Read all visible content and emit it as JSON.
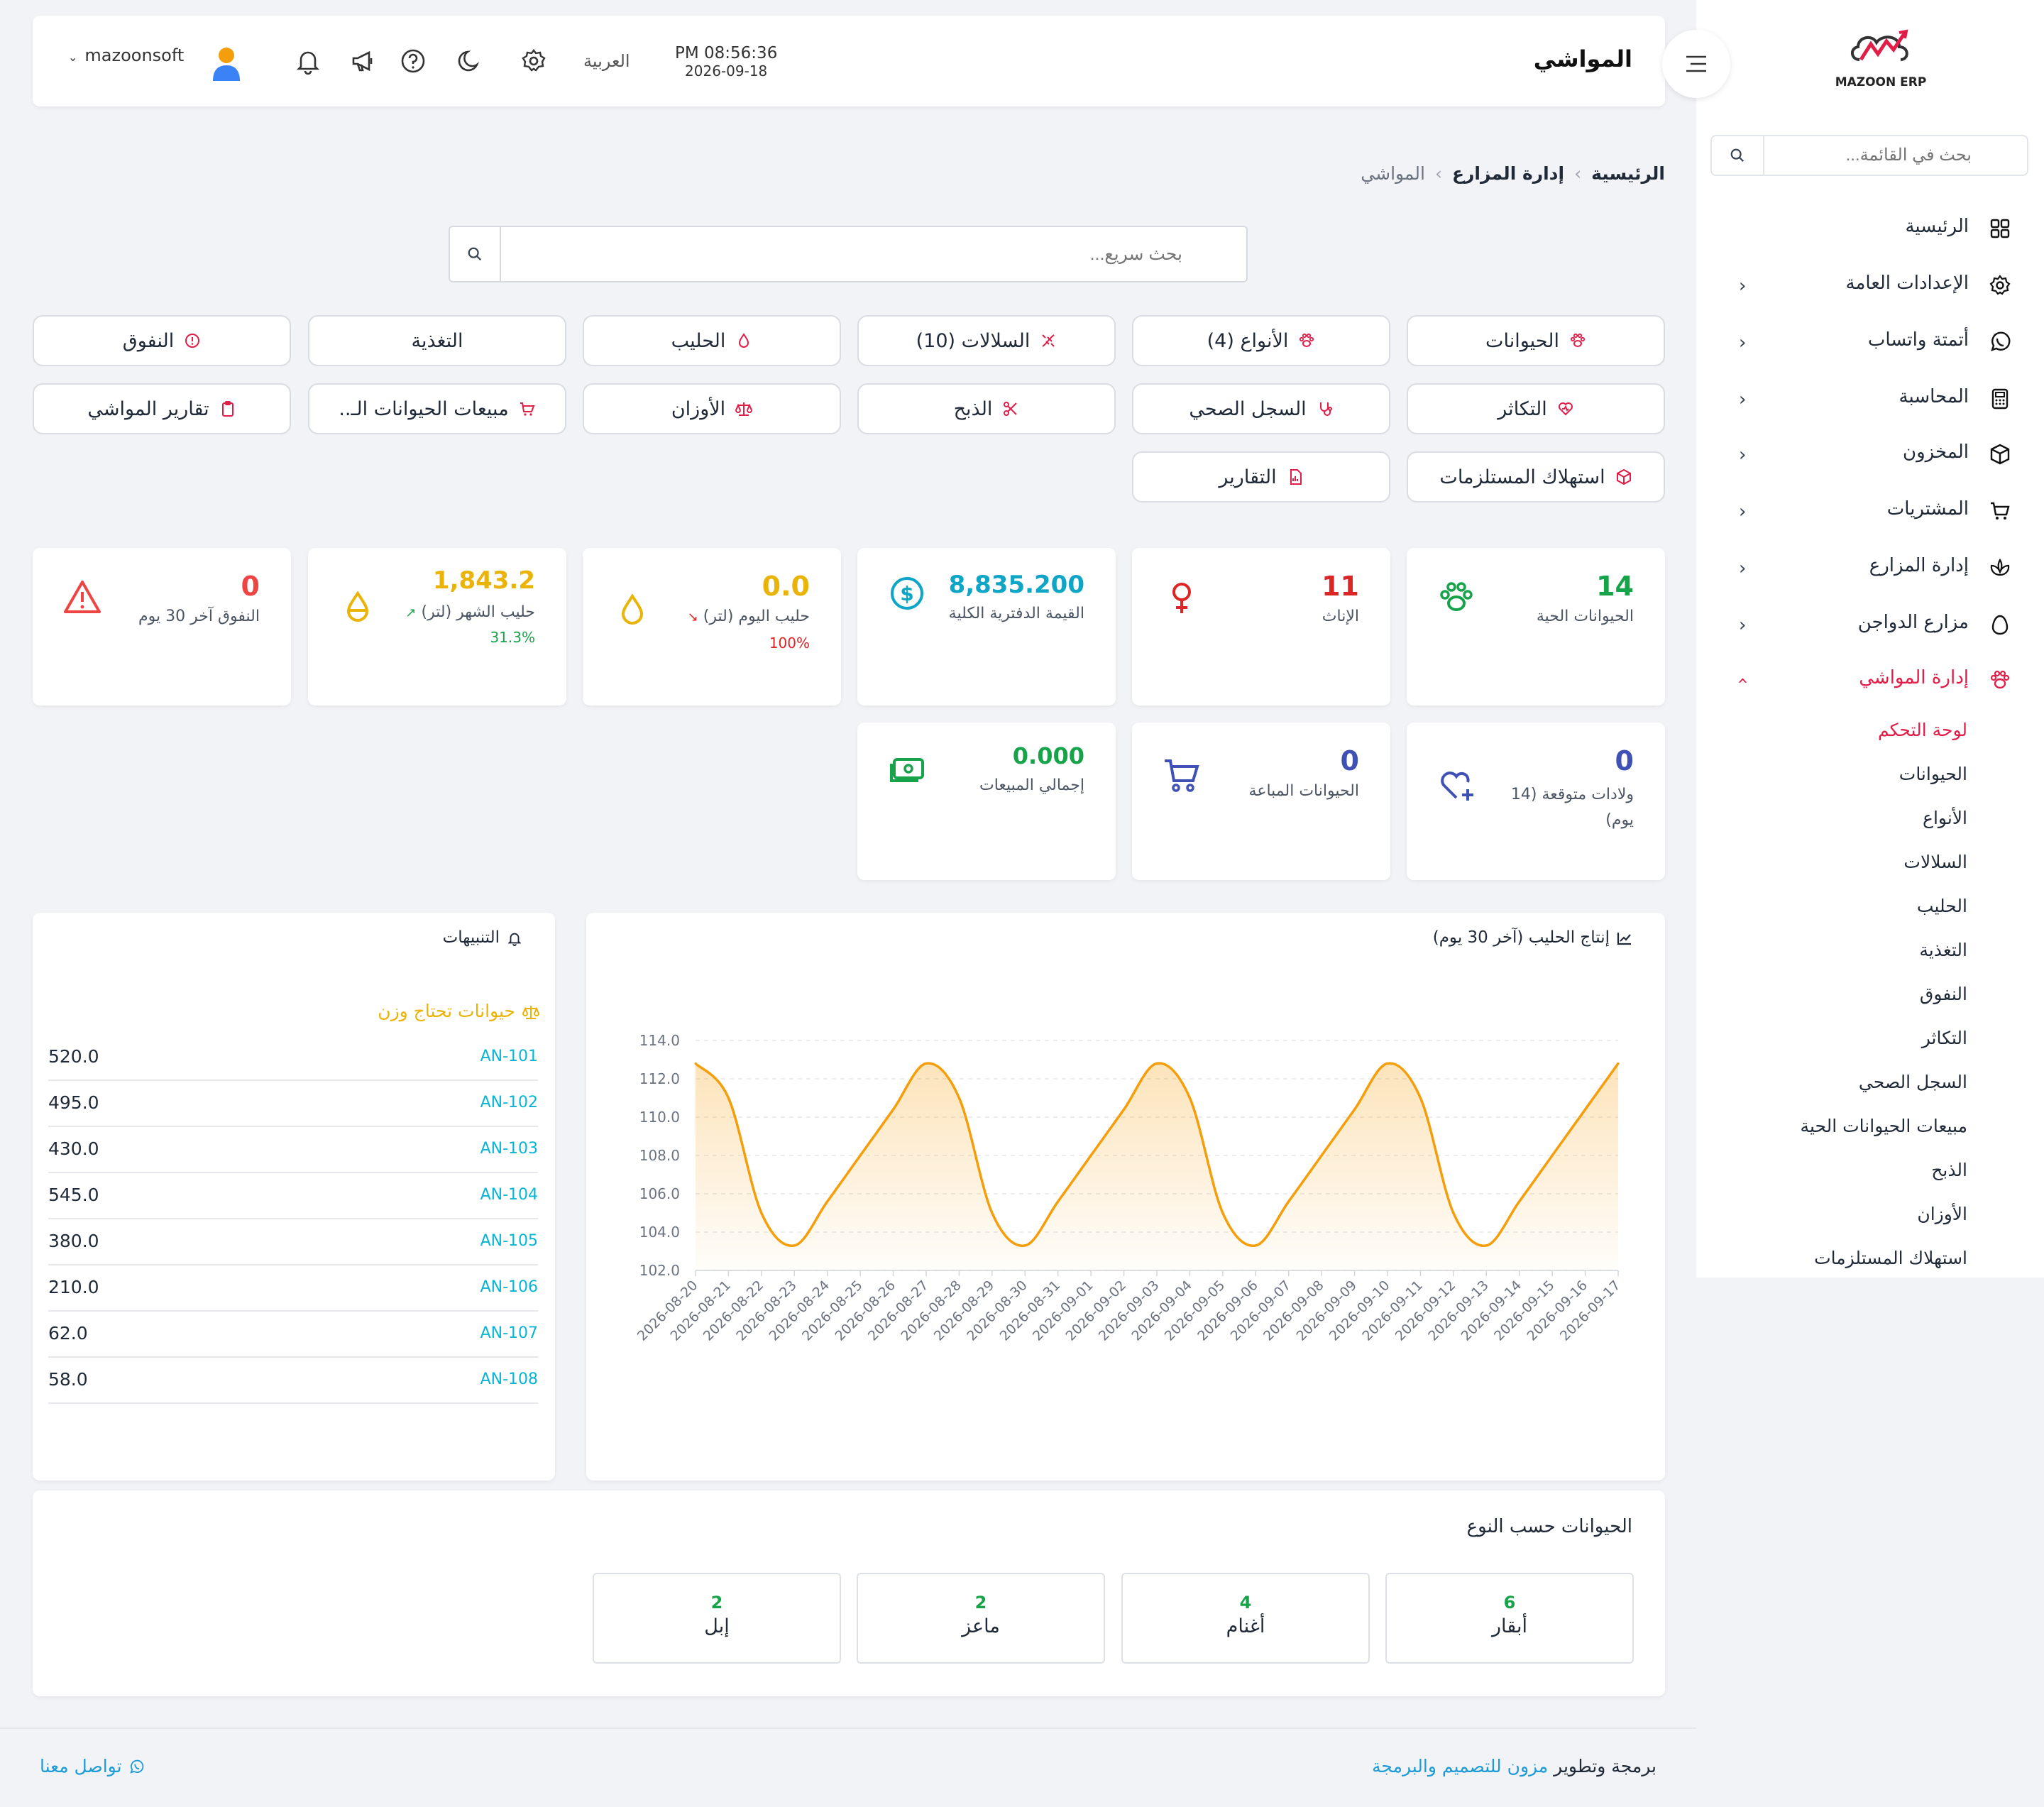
{
  "app": {
    "logo_text": "MAZOON ERP",
    "logo_tag": "ERP/ERP"
  },
  "sidebar": {
    "search_placeholder": "بحث في القائمة...",
    "items": [
      {
        "label": "الرئيسية",
        "icon": "grid-icon",
        "chevron": false
      },
      {
        "label": "الإعدادات العامة",
        "icon": "gear-icon",
        "chevron": true
      },
      {
        "label": "أتمتة واتساب",
        "icon": "whatsapp-icon",
        "chevron": true
      },
      {
        "label": "المحاسبة",
        "icon": "calculator-icon",
        "chevron": true
      },
      {
        "label": "المخزون",
        "icon": "box-icon",
        "chevron": true
      },
      {
        "label": "المشتريات",
        "icon": "cart-icon",
        "chevron": true
      },
      {
        "label": "إدارة المزارع",
        "icon": "plant-icon",
        "chevron": true
      },
      {
        "label": "مزارع الدواجن",
        "icon": "egg-icon",
        "chevron": true
      },
      {
        "label": "إدارة المواشي",
        "icon": "paw-icon",
        "chevron": true,
        "active": true
      }
    ],
    "subitems": [
      "لوحة التحكم",
      "الحيوانات",
      "الأنواع",
      "السلالات",
      "الحليب",
      "التغذية",
      "النفوق",
      "التكاثر",
      "السجل الصحي",
      "مبيعات الحيوانات الحية",
      "الذبح",
      "الأوزان",
      "استهلاك المستلزمات"
    ]
  },
  "header": {
    "title": "المواشي",
    "time": "PM 08:56:36",
    "date": "2026-09-18",
    "language": "العربية",
    "username": "mazoonsoft"
  },
  "breadcrumb": {
    "home": "الرئيسية",
    "section": "إدارة المزارع",
    "current": "المواشي"
  },
  "quick_search": {
    "placeholder": "بحث سريع..."
  },
  "nav_buttons": [
    [
      "الحيوانات",
      "الأنواع (4)",
      "السلالات (10)",
      "الحليب",
      "التغذية",
      "النفوق"
    ],
    [
      "التكاثر",
      "السجل الصحي",
      "الذبح",
      "الأوزان",
      "مبيعات الحيوانات الـ..",
      "تقارير المواشي"
    ],
    [
      "استهلاك المستلزمات",
      "التقارير"
    ]
  ],
  "stats": {
    "live": {
      "value": "14",
      "label": "الحيوانات الحية",
      "color": "#16a34a"
    },
    "females": {
      "value": "11",
      "label": "الإناث",
      "color": "#dc2626"
    },
    "book_value": {
      "value": "8,835.200",
      "label": "القيمة الدفترية الكلية",
      "color": "#0ea5c6"
    },
    "milk_today": {
      "value": "0.0",
      "label": "حليب اليوم (لتر)",
      "pct": "100%",
      "color": "#eab308"
    },
    "milk_month": {
      "value": "1,843.2",
      "label": "حليب الشهر (لتر)",
      "pct": "31.3%",
      "color": "#eab308"
    },
    "mortality": {
      "value": "0",
      "label": "النفوق آخر 30 يوم",
      "color": "#ef4444"
    },
    "expected_births": {
      "value": "0",
      "label": "ولادات متوقعة (14 يوم)",
      "color": "#3f51b5"
    },
    "sold": {
      "value": "0",
      "label": "الحيوانات المباعة",
      "color": "#3f51b5"
    },
    "total_sales": {
      "value": "0.000",
      "label": "إجمالي المبيعات",
      "color": "#16a34a"
    }
  },
  "milk_chart": {
    "title": "إنتاج الحليب (آخر 30 يوم)"
  },
  "chart_data": {
    "type": "area",
    "title": "إنتاج الحليب (آخر 30 يوم)",
    "xlabel": "",
    "ylabel": "",
    "ylim": [
      102.0,
      114.0
    ],
    "yticks": [
      "114.0",
      "112.0",
      "110.0",
      "108.0",
      "106.0",
      "104.0",
      "102.0"
    ],
    "categories": [
      "2026-08-20",
      "2026-08-21",
      "2026-08-22",
      "2026-08-23",
      "2026-08-24",
      "2026-08-25",
      "2026-08-26",
      "2026-08-27",
      "2026-08-28",
      "2026-08-29",
      "2026-08-30",
      "2026-08-31",
      "2026-09-01",
      "2026-09-02",
      "2026-09-03",
      "2026-09-04",
      "2026-09-05",
      "2026-09-06",
      "2026-09-07",
      "2026-09-08",
      "2026-09-09",
      "2026-09-10",
      "2026-09-11",
      "2026-09-12",
      "2026-09-13",
      "2026-09-14",
      "2026-09-15",
      "2026-09-16",
      "2026-09-17"
    ],
    "values": [
      112.8,
      111.0,
      105.0,
      103.3,
      105.6,
      108.0,
      110.4,
      112.8,
      111.0,
      105.0,
      103.3,
      105.6,
      108.0,
      110.4,
      112.8,
      111.0,
      105.0,
      103.3,
      105.6,
      108.0,
      110.4,
      112.8,
      111.0,
      105.0,
      103.3,
      105.6,
      108.0,
      110.4,
      112.8
    ],
    "grid": true,
    "color": "#f59e0b"
  },
  "alerts": {
    "title": "التنبيهات",
    "weigh_title": "حيوانات تحتاج وزن",
    "rows": [
      {
        "code": "AN-101",
        "weight": "520.0"
      },
      {
        "code": "AN-102",
        "weight": "495.0"
      },
      {
        "code": "AN-103",
        "weight": "430.0"
      },
      {
        "code": "AN-104",
        "weight": "545.0"
      },
      {
        "code": "AN-105",
        "weight": "380.0"
      },
      {
        "code": "AN-106",
        "weight": "210.0"
      },
      {
        "code": "AN-107",
        "weight": "62.0"
      },
      {
        "code": "AN-108",
        "weight": "58.0"
      }
    ]
  },
  "types": {
    "title": "الحيوانات حسب النوع",
    "items": [
      {
        "count": "6",
        "label": "أبقار"
      },
      {
        "count": "4",
        "label": "أغنام"
      },
      {
        "count": "2",
        "label": "ماعز"
      },
      {
        "count": "2",
        "label": "إبل"
      }
    ]
  },
  "footer": {
    "prefix": "برمجة وتطوير",
    "brand": "مزون للتصميم والبرمجة",
    "contact": "تواصل معنا"
  }
}
